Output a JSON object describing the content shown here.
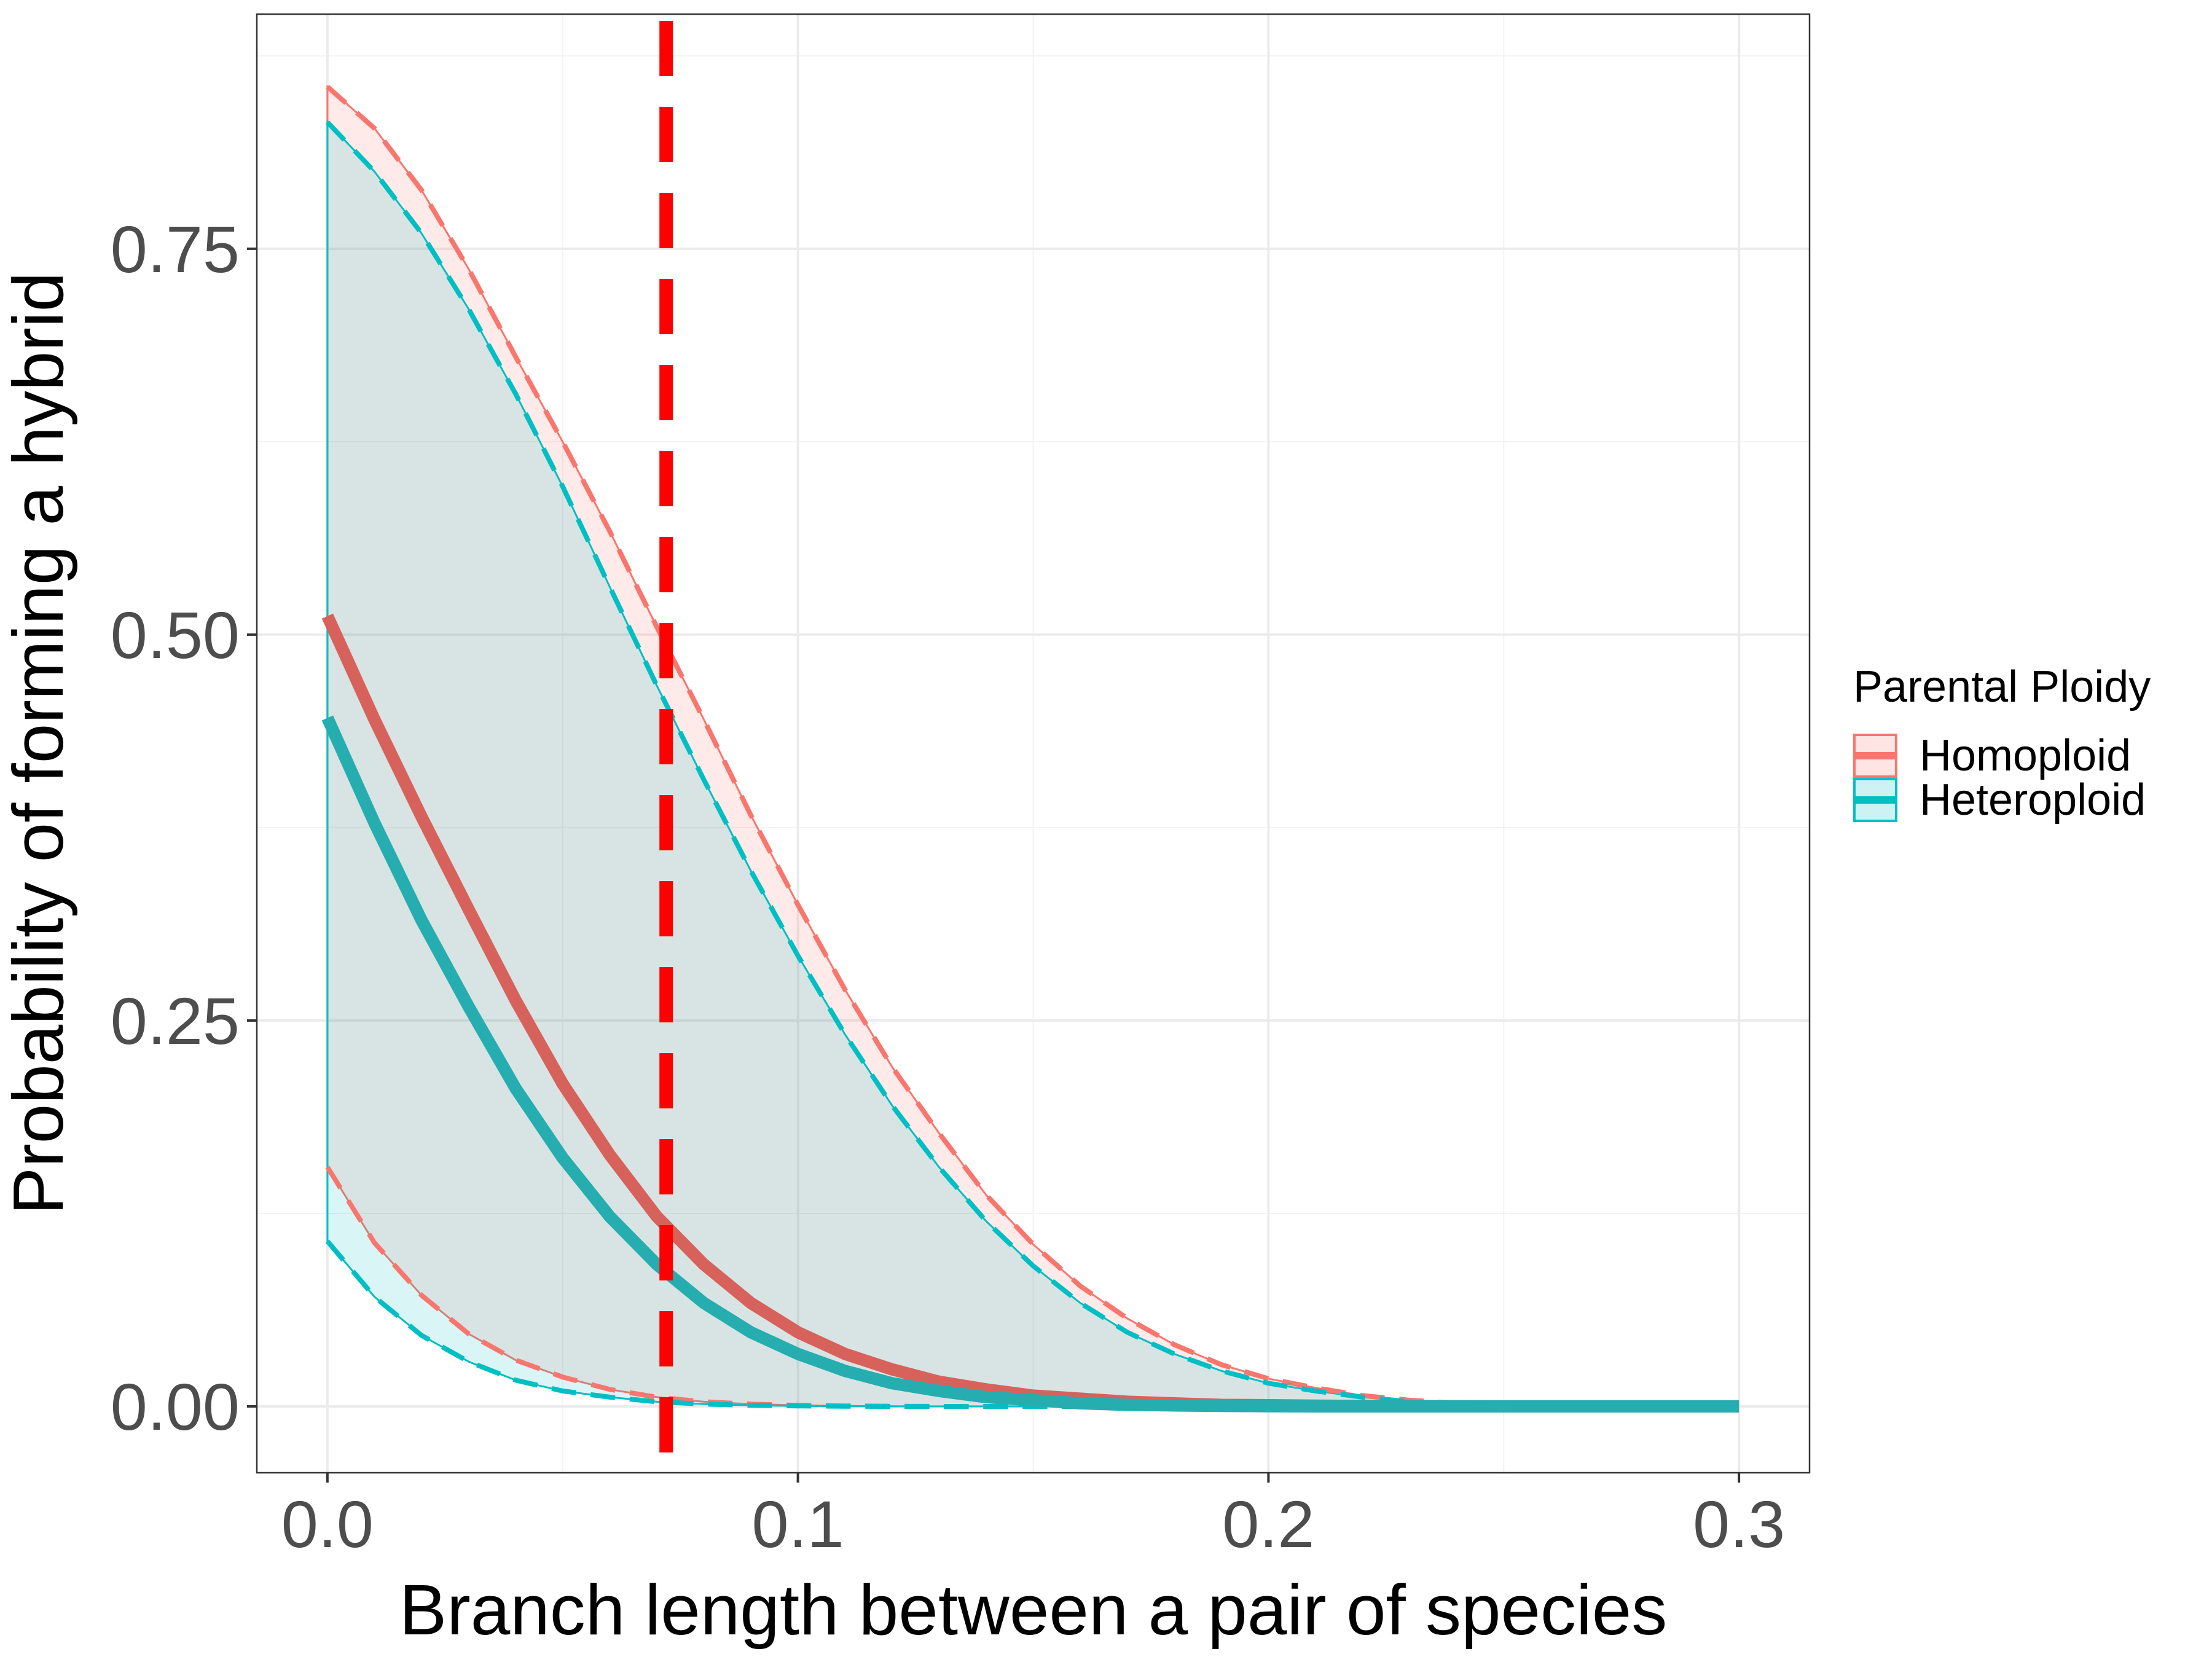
{
  "chart_data": {
    "type": "line",
    "title": "",
    "xlabel": "Branch length between a pair of species",
    "ylabel": "Probability of forming a hybrid",
    "xlim": [
      -0.015,
      0.315
    ],
    "ylim": [
      -0.043,
      0.902
    ],
    "x_ticks": [
      0.0,
      0.1,
      0.2,
      0.3
    ],
    "x_tick_labels": [
      "0.0",
      "0.1",
      "0.2",
      "0.3"
    ],
    "y_ticks": [
      0.0,
      0.25,
      0.5,
      0.75
    ],
    "y_tick_labels": [
      "0.00",
      "0.25",
      "0.50",
      "0.75"
    ],
    "grid": true,
    "legend_title": "Parental Ploidy",
    "legend_position": "right",
    "reference_line": {
      "x": 0.072,
      "style": "dashed",
      "color": "#ff0000"
    },
    "x": [
      0.0,
      0.01,
      0.02,
      0.03,
      0.04,
      0.05,
      0.06,
      0.07,
      0.08,
      0.09,
      0.1,
      0.11,
      0.12,
      0.13,
      0.14,
      0.15,
      0.16,
      0.17,
      0.18,
      0.19,
      0.2,
      0.21,
      0.22,
      0.23,
      0.24,
      0.25,
      0.26,
      0.27,
      0.28,
      0.29,
      0.3
    ],
    "series": [
      {
        "name": "Homoploid",
        "color": "#f8766d",
        "mean": [
          0.512,
          0.445,
          0.382,
          0.322,
          0.263,
          0.209,
          0.163,
          0.123,
          0.092,
          0.067,
          0.048,
          0.034,
          0.024,
          0.016,
          0.011,
          0.007,
          0.005,
          0.003,
          0.002,
          0.001,
          0.0008,
          0.0005,
          0.0003,
          0.0002,
          0.0001,
          0.0,
          0.0,
          0.0,
          0.0,
          0.0,
          0.0
        ],
        "lower": [
          0.155,
          0.106,
          0.072,
          0.047,
          0.03,
          0.019,
          0.011,
          0.006,
          0.003,
          0.0015,
          0.0007,
          0.0003,
          0.0001,
          0.0,
          0.0,
          0.0,
          0.0,
          0.0,
          0.0,
          0.0,
          0.0,
          0.0,
          0.0,
          0.0,
          0.0,
          0.0,
          0.0,
          0.0,
          0.0,
          0.0,
          0.0
        ],
        "upper": [
          0.855,
          0.828,
          0.788,
          0.737,
          0.68,
          0.625,
          0.567,
          0.505,
          0.445,
          0.383,
          0.325,
          0.27,
          0.22,
          0.177,
          0.137,
          0.105,
          0.078,
          0.057,
          0.04,
          0.027,
          0.018,
          0.012,
          0.007,
          0.004,
          0.002,
          0.001,
          0.0006,
          0.0003,
          0.0001,
          0.0,
          0.0
        ]
      },
      {
        "name": "Heteroploid",
        "color": "#00bfc4",
        "mean": [
          0.446,
          0.378,
          0.315,
          0.259,
          0.206,
          0.161,
          0.123,
          0.092,
          0.067,
          0.048,
          0.034,
          0.023,
          0.015,
          0.01,
          0.006,
          0.004,
          0.002,
          0.001,
          0.0006,
          0.0003,
          0.0001,
          0.0,
          0.0,
          0.0,
          0.0,
          0.0,
          0.0,
          0.0,
          0.0,
          0.0,
          0.0
        ],
        "lower": [
          0.107,
          0.071,
          0.046,
          0.029,
          0.017,
          0.01,
          0.006,
          0.003,
          0.0015,
          0.0007,
          0.0003,
          0.0001,
          0.0,
          0.0,
          0.0,
          0.0,
          0.0,
          0.0,
          0.0,
          0.0,
          0.0,
          0.0,
          0.0,
          0.0,
          0.0,
          0.0,
          0.0,
          0.0,
          0.0,
          0.0,
          0.0
        ],
        "upper": [
          0.832,
          0.8,
          0.76,
          0.711,
          0.656,
          0.596,
          0.531,
          0.467,
          0.406,
          0.347,
          0.292,
          0.241,
          0.195,
          0.155,
          0.12,
          0.091,
          0.067,
          0.048,
          0.034,
          0.023,
          0.015,
          0.01,
          0.006,
          0.003,
          0.0018,
          0.0009,
          0.0004,
          0.0002,
          0.0001,
          0.0,
          0.0
        ]
      }
    ]
  }
}
